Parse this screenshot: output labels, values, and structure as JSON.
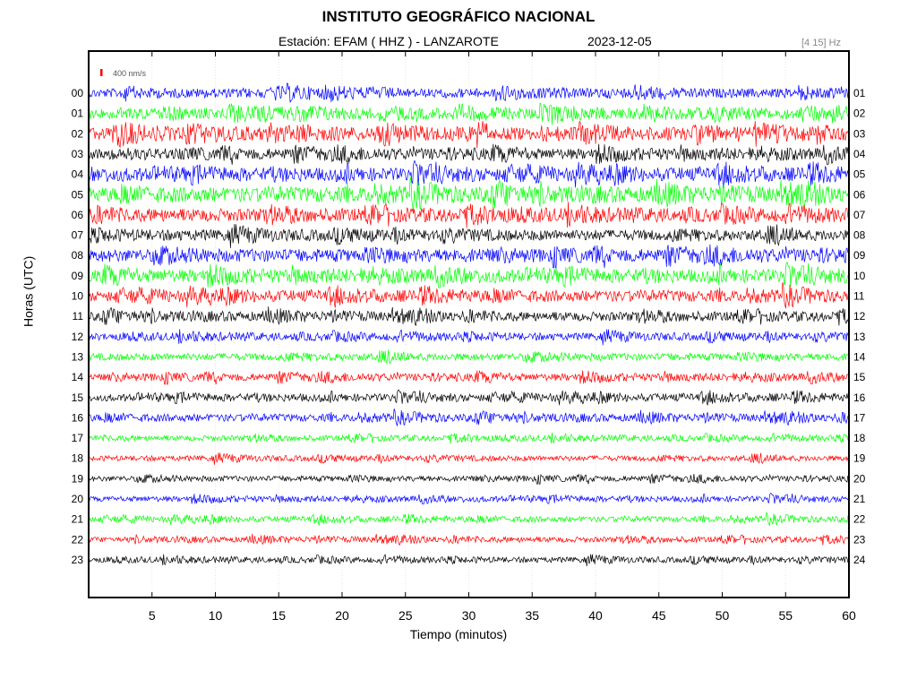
{
  "chart_data": {
    "type": "line",
    "title": "INSTITUTO GEOGRÁFICO NACIONAL",
    "station_label": "Estación:  EFAM ( HHZ ) - LANZAROTE",
    "date": "2023-12-05",
    "band": "[4 15] Hz",
    "scale_label": "400 nm/s",
    "xlabel": "Tiempo (minutos)",
    "ylabel": "Horas (UTC)",
    "xlim": [
      0,
      60
    ],
    "x_ticks": [
      5,
      10,
      15,
      20,
      25,
      30,
      35,
      40,
      45,
      50,
      55,
      60
    ],
    "left_hours": [
      "00",
      "01",
      "02",
      "03",
      "04",
      "05",
      "06",
      "07",
      "08",
      "09",
      "10",
      "11",
      "12",
      "13",
      "14",
      "15",
      "16",
      "17",
      "18",
      "19",
      "20",
      "21",
      "22",
      "23"
    ],
    "right_hours": [
      "01",
      "02",
      "03",
      "04",
      "05",
      "06",
      "07",
      "08",
      "09",
      "10",
      "11",
      "12",
      "13",
      "14",
      "15",
      "16",
      "17",
      "18",
      "19",
      "20",
      "21",
      "22",
      "23",
      "24"
    ],
    "trace_colors": [
      "#0000ff",
      "#00ff00",
      "#ff0000",
      "#000000"
    ],
    "trace_amplitude": [
      5,
      6,
      7,
      6,
      7,
      8,
      7,
      6,
      7,
      7,
      6,
      5,
      4,
      4,
      4,
      4,
      4,
      3,
      3,
      3,
      3,
      3,
      3,
      3
    ],
    "grid": true
  }
}
